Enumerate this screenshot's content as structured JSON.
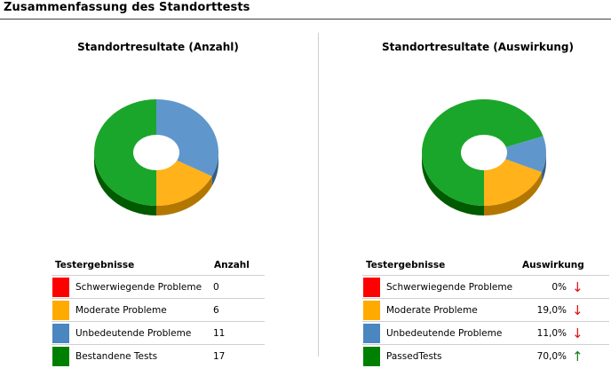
{
  "page": {
    "title": "Zusammenfassung des Standorttests"
  },
  "colors": {
    "severe": "#ff0000",
    "moderate": "#ffaa00",
    "minor": "#4a86c0",
    "passed": "#008000"
  },
  "left": {
    "title": "Standortresultate (Anzahl)",
    "col1": "Testergebnisse",
    "col2": "Anzahl",
    "rows": [
      {
        "label": "Schwerwiegende Probleme",
        "value": "0",
        "color": "#ff0000"
      },
      {
        "label": "Moderate Probleme",
        "value": "6",
        "color": "#ffaa00"
      },
      {
        "label": "Unbedeutende Probleme",
        "value": "11",
        "color": "#4a86c0"
      },
      {
        "label": "Bestandene Tests",
        "value": "17",
        "color": "#008000"
      }
    ]
  },
  "right": {
    "title": "Standortresultate (Auswirkung)",
    "col1": "Testergebnisse",
    "col2": "Auswirkung",
    "rows": [
      {
        "label": "Schwerwiegende Probleme",
        "value": "0%",
        "arrow": "↓",
        "arrow_icon": "arrow-down-icon",
        "color": "#ff0000"
      },
      {
        "label": "Moderate Probleme",
        "value": "19,0%",
        "arrow": "↓",
        "arrow_icon": "arrow-down-icon",
        "color": "#ffaa00"
      },
      {
        "label": "Unbedeutende Probleme",
        "value": "11,0%",
        "arrow": "↓",
        "arrow_icon": "arrow-down-icon",
        "color": "#4a86c0"
      },
      {
        "label": "PassedTests",
        "value": "70,0%",
        "arrow": "↑",
        "arrow_icon": "arrow-up-icon",
        "color": "#008000"
      }
    ]
  },
  "chart_data": [
    {
      "type": "pie",
      "title": "Standortresultate (Anzahl)",
      "categories": [
        "Schwerwiegende Probleme",
        "Moderate Probleme",
        "Unbedeutende Probleme",
        "Bestandene Tests"
      ],
      "values": [
        0,
        6,
        11,
        17
      ],
      "colors": [
        "#ff0000",
        "#ffaa00",
        "#4a86c0",
        "#008000"
      ]
    },
    {
      "type": "pie",
      "title": "Standortresultate (Auswirkung)",
      "categories": [
        "Schwerwiegende Probleme",
        "Moderate Probleme",
        "Unbedeutende Probleme",
        "PassedTests"
      ],
      "values": [
        0,
        19,
        11,
        70
      ],
      "colors": [
        "#ff0000",
        "#ffaa00",
        "#4a86c0",
        "#008000"
      ]
    }
  ]
}
